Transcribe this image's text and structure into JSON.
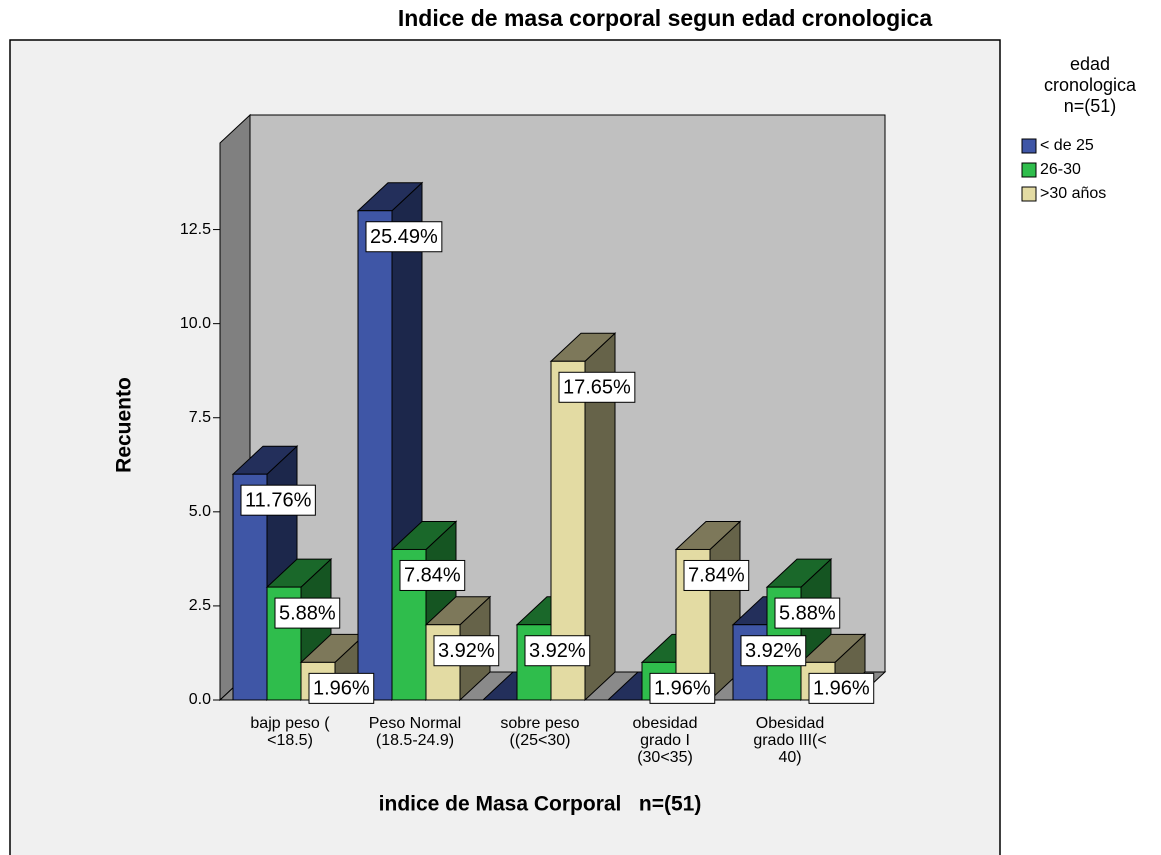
{
  "chart_data": {
    "type": "bar3d",
    "title": "Indice de masa corporal segun edad cronologica",
    "x_label": "indice de Masa Corporal   n=(51)",
    "y_label": "Recuento",
    "legend_title": [
      "edad",
      "cronologica",
      "n=(51)"
    ],
    "legend_position": "right",
    "categories": [
      [
        "bajp peso (",
        "<18.5)"
      ],
      [
        "Peso Normal",
        "(18.5-24.9)"
      ],
      [
        "sobre peso",
        "((25<30)"
      ],
      [
        "obesidad",
        "grado I",
        "(30<35)"
      ],
      [
        "Obesidad",
        "grado III(<",
        "40)"
      ]
    ],
    "series": [
      {
        "name": "< de 25",
        "color": "#3f56a6",
        "values": [
          6,
          13,
          0,
          0,
          2
        ],
        "value_labels": [
          "11.76%",
          "25.49%",
          null,
          null,
          "3.92%"
        ]
      },
      {
        "name": "26-30",
        "color": "#2fbd4c",
        "values": [
          3,
          4,
          2,
          1,
          3
        ],
        "value_labels": [
          "5.88%",
          "7.84%",
          "3.92%",
          "1.96%",
          "5.88%"
        ]
      },
      {
        "name": ">30 años",
        "color": "#e3dba3",
        "values": [
          1,
          2,
          9,
          4,
          1
        ],
        "value_labels": [
          "1.96%",
          "3.92%",
          "17.65%",
          "7.84%",
          "1.96%"
        ]
      }
    ],
    "ylim": [
      0,
      14.8
    ],
    "yticks": [
      {
        "value": 0,
        "label": "0.0"
      },
      2.5,
      {
        "value": 5,
        "label": "5.0"
      },
      7.5,
      {
        "value": 10,
        "label": "10.0"
      },
      12.5
    ]
  }
}
